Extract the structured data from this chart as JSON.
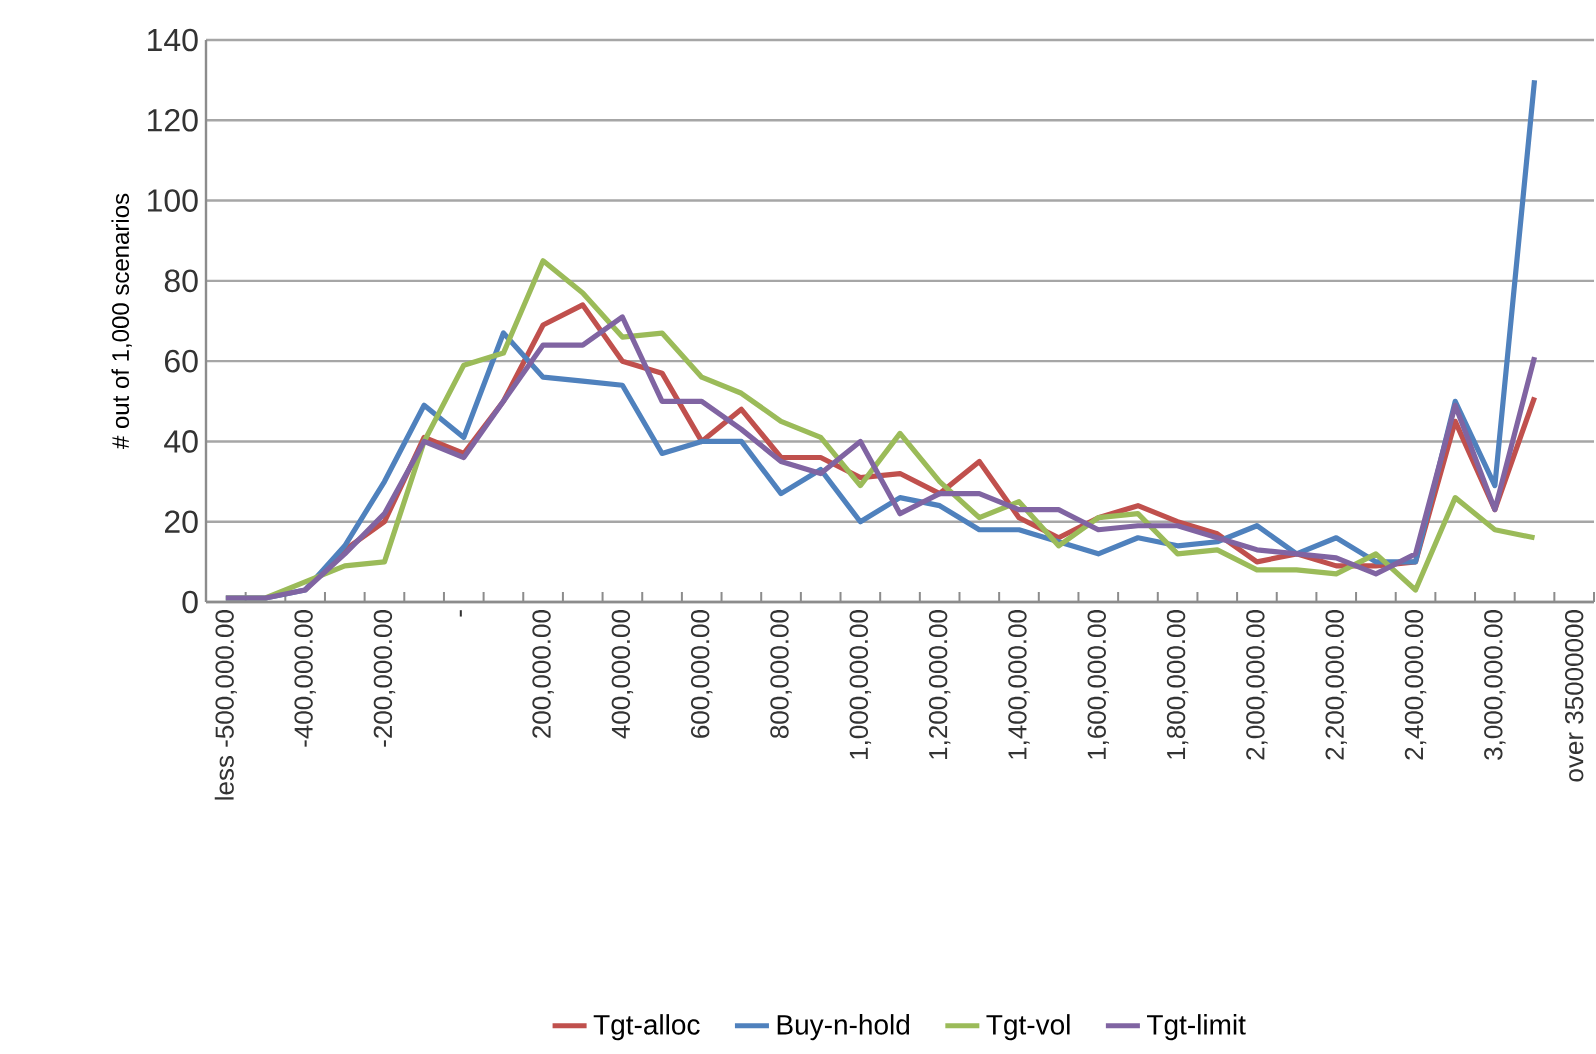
{
  "chart_data": {
    "type": "line",
    "ylabel": "# out of 1,000 scenarios",
    "categories": [
      "less -500,000.00",
      null,
      "-400,000.00",
      null,
      "-200,000.00",
      null,
      "-",
      null,
      "200,000.00",
      null,
      "400,000.00",
      null,
      "600,000.00",
      null,
      "800,000.00",
      null,
      "1,000,000.00",
      null,
      "1,200,000.00",
      null,
      "1,400,000.00",
      null,
      "1,600,000.00",
      null,
      "1,800,000.00",
      null,
      "2,000,000.00",
      null,
      "2,200,000.00",
      null,
      "2,400,000.00",
      null,
      "3,000,000.00",
      null,
      "over 35000000"
    ],
    "series": [
      {
        "name": "Tgt-alloc",
        "color": "#c0504d",
        "values": [
          null,
          null,
          3,
          13,
          20,
          41,
          37,
          50,
          69,
          74,
          60,
          57,
          40,
          48,
          36,
          36,
          31,
          32,
          27,
          35,
          21,
          16,
          21,
          24,
          20,
          17,
          10,
          12,
          9,
          9,
          10,
          45,
          23,
          51,
          null
        ]
      },
      {
        "name": "Buy-n-hold",
        "color": "#4f81bd",
        "values": [
          1,
          1,
          3,
          14,
          30,
          49,
          41,
          67,
          56,
          55,
          54,
          37,
          40,
          40,
          27,
          33,
          20,
          26,
          24,
          18,
          18,
          15,
          12,
          16,
          14,
          15,
          19,
          12,
          16,
          10,
          10,
          50,
          29,
          130,
          null
        ]
      },
      {
        "name": "Tgt-vol",
        "color": "#9bbb59",
        "values": [
          1,
          1,
          5,
          9,
          10,
          40,
          59,
          62,
          85,
          77,
          66,
          67,
          56,
          52,
          45,
          41,
          29,
          42,
          30,
          21,
          25,
          14,
          21,
          22,
          12,
          13,
          8,
          8,
          7,
          12,
          3,
          26,
          18,
          16,
          null
        ]
      },
      {
        "name": "Tgt-limit",
        "color": "#8064a2",
        "values": [
          1,
          1,
          3,
          12,
          22,
          40,
          36,
          50,
          64,
          64,
          71,
          50,
          50,
          43,
          35,
          32,
          40,
          22,
          27,
          27,
          23,
          23,
          18,
          19,
          19,
          16,
          13,
          12,
          11,
          7,
          12,
          49,
          23,
          61,
          null
        ]
      }
    ],
    "ylim": [
      0,
      140
    ],
    "yticks": [
      0,
      20,
      40,
      60,
      80,
      100,
      120,
      140
    ],
    "grid": "y",
    "legend": "bottom",
    "marker": "none",
    "line_style": "solid"
  }
}
